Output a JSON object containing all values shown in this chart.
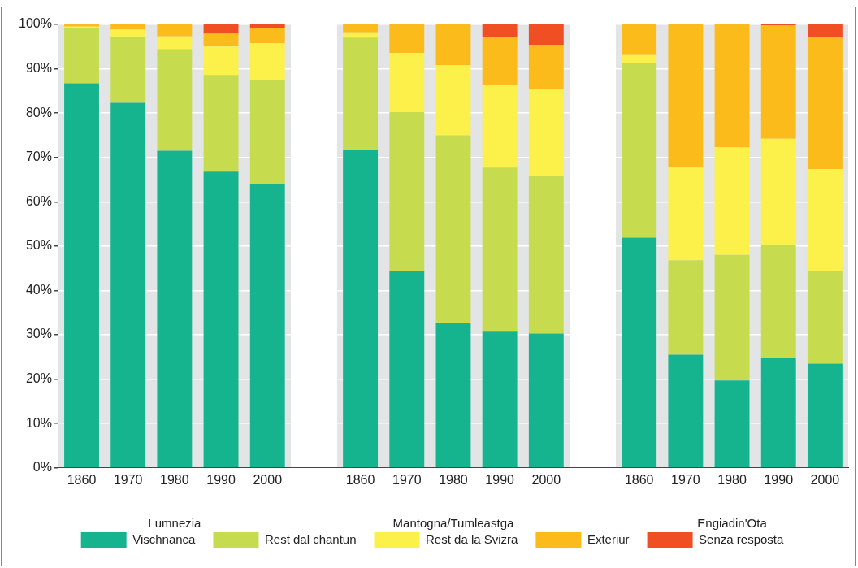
{
  "chart_data": {
    "type": "bar",
    "stacked": true,
    "categories": [
      "1860",
      "1970",
      "1980",
      "1990",
      "2000",
      null,
      "1860",
      "1970",
      "1980",
      "1990",
      "2000",
      null,
      "1860",
      "1970",
      "1980",
      "1990",
      "2000"
    ],
    "series": [
      {
        "name": "Vischnanca",
        "color": "#15b38e",
        "values": [
          86.7,
          82.3,
          71.5,
          66.8,
          63.9,
          null,
          71.8,
          44.3,
          32.7,
          30.9,
          30.3,
          null,
          51.9,
          25.5,
          19.7,
          24.7,
          23.5
        ]
      },
      {
        "name": "Rest dal chantun",
        "color": "#c7db4f",
        "values": [
          12.5,
          14.8,
          22.9,
          21.8,
          23.5,
          null,
          25.2,
          35.9,
          42.3,
          36.8,
          35.5,
          null,
          39.3,
          21.3,
          28.3,
          25.6,
          21.0
        ]
      },
      {
        "name": "Rest da la Svizra",
        "color": "#fcf04a",
        "values": [
          0.3,
          1.7,
          2.9,
          6.4,
          8.4,
          null,
          1.2,
          13.4,
          15.8,
          18.7,
          19.5,
          null,
          1.9,
          20.9,
          24.3,
          23.9,
          22.9
        ]
      },
      {
        "name": "Exteriur",
        "color": "#fbbb1a",
        "values": [
          0.5,
          1.2,
          2.7,
          2.9,
          3.3,
          null,
          1.8,
          6.4,
          9.2,
          10.8,
          10.1,
          null,
          6.9,
          32.3,
          27.7,
          25.6,
          29.8
        ]
      },
      {
        "name": "Senza resposta",
        "color": "#f04e23",
        "values": [
          0,
          0,
          0,
          2.1,
          0.9,
          null,
          0,
          0,
          0,
          2.8,
          4.6,
          null,
          0,
          0,
          0,
          0.2,
          2.8
        ]
      }
    ],
    "annotations": [
      "Lumnezia",
      "Mantogna/Tumleastga",
      "Engiadin'Ota"
    ],
    "ylim": [
      0,
      100
    ],
    "yticks": [
      {
        "value": 0,
        "label": "0%"
      },
      {
        "value": 10,
        "label": "10%"
      },
      {
        "value": 20,
        "label": "20%"
      },
      {
        "value": 30,
        "label": "30%"
      },
      {
        "value": 40,
        "label": "40%"
      },
      {
        "value": 50,
        "label": "50%"
      },
      {
        "value": 60,
        "label": "60%"
      },
      {
        "value": 70,
        "label": "70%"
      },
      {
        "value": 80,
        "label": "80%"
      },
      {
        "value": 90,
        "label": "90%"
      },
      {
        "value": 100,
        "label": "100%"
      }
    ],
    "grid": "y",
    "legend": "bottom"
  }
}
